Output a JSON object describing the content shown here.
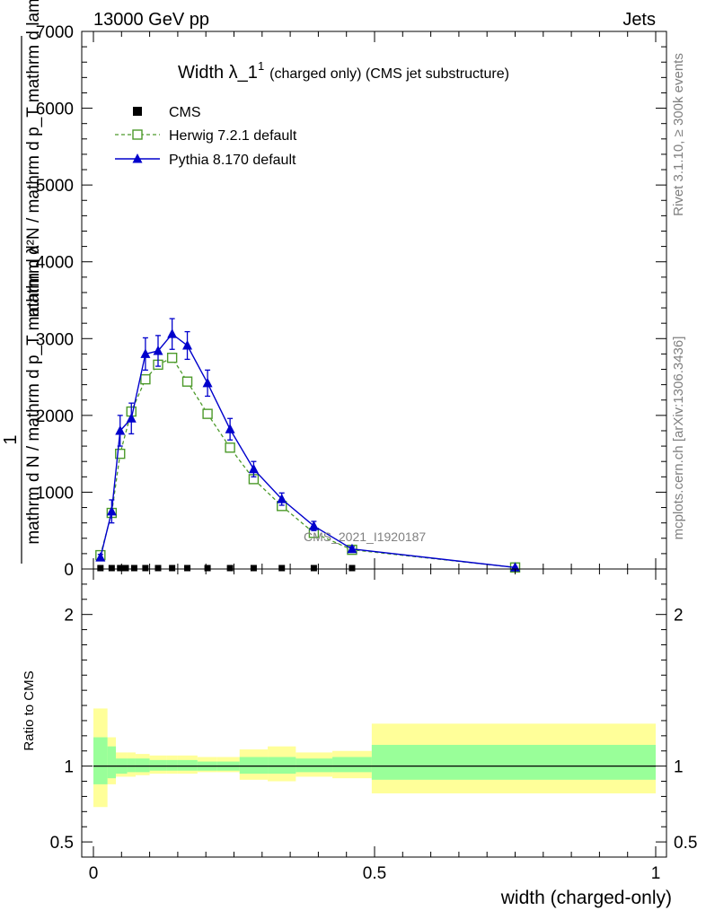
{
  "header": {
    "left": "13000 GeV pp",
    "right": "Jets"
  },
  "side_text": {
    "top": "Rivet 3.1.10, ≥ 300k events",
    "bottom": "mcplots.cern.ch [arXiv:1306.3436]"
  },
  "watermark": "CMS_2021_I1920187",
  "chart_data": [
    {
      "type": "line",
      "title_main": "Width λ_1",
      "title_sup": "1",
      "title_rest": "(charged only) (CMS jet substructure)",
      "ylabel_numerator": "1",
      "ylabel_denominator": "mathrm d N / mathrm d p_T mathrm d λ",
      "ylabel_right": "mathrm d²N / mathrm d p_T mathrm d lambda",
      "ylim": [
        0,
        7000
      ],
      "yticks": [
        "0",
        "1000",
        "2000",
        "3000",
        "4000",
        "5000",
        "6000",
        "7000"
      ],
      "xlim": [
        0,
        1
      ],
      "legend": [
        {
          "name": "CMS",
          "marker": "square-filled",
          "color": "#000000"
        },
        {
          "name": "Herwig 7.2.1 default",
          "marker": "square-open",
          "color": "#4c9a2a"
        },
        {
          "name": "Pythia 8.170 default",
          "marker": "triangle",
          "color": "#0000cc"
        }
      ],
      "series": [
        {
          "name": "CMS",
          "x": [
            0.0125,
            0.0325,
            0.0475,
            0.0575,
            0.0725,
            0.0925,
            0.115,
            0.14,
            0.167,
            0.203,
            0.243,
            0.285,
            0.335,
            0.392,
            0.46
          ],
          "values": [
            0,
            0,
            0,
            0,
            0,
            0,
            0,
            0,
            0,
            0,
            0,
            0,
            0,
            0,
            0
          ]
        },
        {
          "name": "Herwig 7.2.1 default",
          "x": [
            0.0125,
            0.0325,
            0.0475,
            0.0675,
            0.0925,
            0.115,
            0.14,
            0.167,
            0.203,
            0.243,
            0.285,
            0.335,
            0.392,
            0.46,
            0.75
          ],
          "values": [
            180,
            730,
            1500,
            2050,
            2470,
            2660,
            2750,
            2440,
            2020,
            1580,
            1170,
            820,
            470,
            250,
            20
          ]
        },
        {
          "name": "Pythia 8.170 default",
          "x": [
            0.0125,
            0.0325,
            0.0475,
            0.0675,
            0.0925,
            0.115,
            0.14,
            0.167,
            0.203,
            0.243,
            0.285,
            0.335,
            0.392,
            0.46,
            0.75
          ],
          "values": [
            150,
            750,
            1800,
            1960,
            2800,
            2840,
            3060,
            2910,
            2420,
            1820,
            1300,
            910,
            560,
            260,
            20
          ],
          "errors": [
            40,
            150,
            200,
            200,
            210,
            200,
            200,
            180,
            170,
            140,
            100,
            80,
            60,
            30,
            5
          ]
        }
      ]
    },
    {
      "type": "area",
      "ylabel": "Ratio to CMS",
      "ylim": [
        0.4,
        2.3
      ],
      "yticks": [
        "0.5",
        "1",
        "2"
      ],
      "xlim": [
        0,
        1
      ],
      "xticks": [
        "0",
        "0.5",
        "1"
      ],
      "xlabel": "width (charged-only)",
      "bands": [
        {
          "x0": 0.0,
          "x1": 0.025,
          "inner": [
            0.88,
            1.19
          ],
          "outer": [
            0.73,
            1.38
          ]
        },
        {
          "x0": 0.025,
          "x1": 0.04,
          "inner": [
            0.92,
            1.13
          ],
          "outer": [
            0.88,
            1.19
          ]
        },
        {
          "x0": 0.04,
          "x1": 0.06,
          "inner": [
            0.95,
            1.05
          ],
          "outer": [
            0.93,
            1.09
          ]
        },
        {
          "x0": 0.06,
          "x1": 0.075,
          "inner": [
            0.96,
            1.05
          ],
          "outer": [
            0.93,
            1.09
          ]
        },
        {
          "x0": 0.075,
          "x1": 0.1,
          "inner": [
            0.96,
            1.05
          ],
          "outer": [
            0.94,
            1.08
          ]
        },
        {
          "x0": 0.1,
          "x1": 0.13,
          "inner": [
            0.97,
            1.04
          ],
          "outer": [
            0.95,
            1.07
          ]
        },
        {
          "x0": 0.13,
          "x1": 0.15,
          "inner": [
            0.97,
            1.04
          ],
          "outer": [
            0.95,
            1.07
          ]
        },
        {
          "x0": 0.15,
          "x1": 0.185,
          "inner": [
            0.97,
            1.04
          ],
          "outer": [
            0.95,
            1.07
          ]
        },
        {
          "x0": 0.185,
          "x1": 0.22,
          "inner": [
            0.97,
            1.03
          ],
          "outer": [
            0.96,
            1.06
          ]
        },
        {
          "x0": 0.22,
          "x1": 0.26,
          "inner": [
            0.97,
            1.03
          ],
          "outer": [
            0.96,
            1.06
          ]
        },
        {
          "x0": 0.26,
          "x1": 0.31,
          "inner": [
            0.95,
            1.06
          ],
          "outer": [
            0.91,
            1.11
          ]
        },
        {
          "x0": 0.31,
          "x1": 0.36,
          "inner": [
            0.95,
            1.06
          ],
          "outer": [
            0.9,
            1.13
          ]
        },
        {
          "x0": 0.36,
          "x1": 0.425,
          "inner": [
            0.96,
            1.05
          ],
          "outer": [
            0.93,
            1.09
          ]
        },
        {
          "x0": 0.425,
          "x1": 0.495,
          "inner": [
            0.96,
            1.06
          ],
          "outer": [
            0.92,
            1.1
          ]
        },
        {
          "x0": 0.495,
          "x1": 1.0,
          "inner": [
            0.91,
            1.14
          ],
          "outer": [
            0.82,
            1.28
          ]
        }
      ],
      "colors": {
        "inner": "#99ff99",
        "outer": "#ffff99"
      }
    }
  ]
}
